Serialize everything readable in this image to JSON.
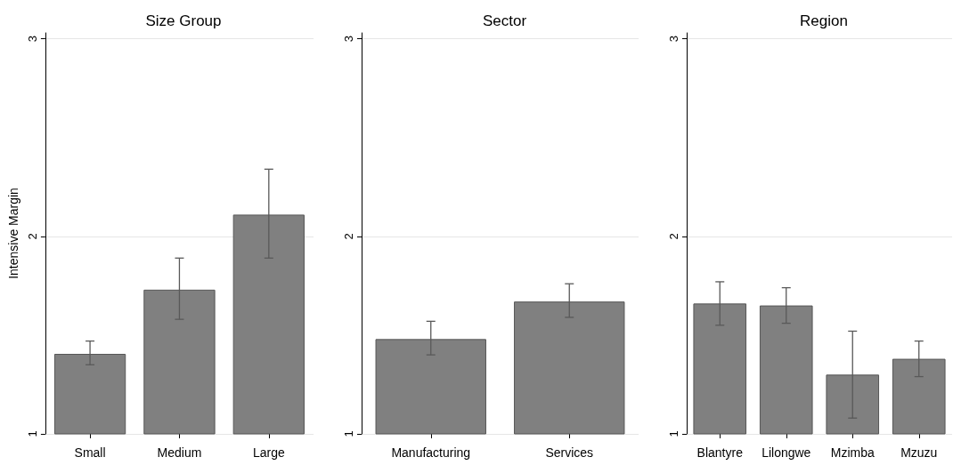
{
  "chart_data": [
    {
      "type": "bar",
      "title": "Size Group",
      "ylabel": "Intensive Margin",
      "categories": [
        "Small",
        "Medium",
        "Large"
      ],
      "values": [
        1.405,
        1.73,
        2.11
      ],
      "errors": [
        [
          1.35,
          1.47
        ],
        [
          1.58,
          1.89
        ],
        [
          1.89,
          2.34
        ]
      ],
      "color": "#808080",
      "ylim": [
        1,
        3.03
      ],
      "yticks": [
        1,
        2,
        3
      ],
      "grid": "y"
    },
    {
      "type": "bar",
      "title": "Sector",
      "categories": [
        "Manufacturing",
        "Services"
      ],
      "values": [
        1.48,
        1.67
      ],
      "errors": [
        [
          1.4,
          1.57
        ],
        [
          1.59,
          1.76
        ]
      ],
      "color": "#808080",
      "ylim": [
        1,
        3.03
      ],
      "yticks": [
        1,
        2,
        3
      ],
      "grid": "y"
    },
    {
      "type": "bar",
      "title": "Region",
      "categories": [
        "Blantyre",
        "Lilongwe",
        "Mzimba",
        "Mzuzu"
      ],
      "values": [
        1.66,
        1.65,
        1.3,
        1.38
      ],
      "errors": [
        [
          1.55,
          1.77
        ],
        [
          1.56,
          1.74
        ],
        [
          1.08,
          1.52
        ],
        [
          1.29,
          1.47
        ]
      ],
      "color": "#808080",
      "ylim": [
        1,
        3.03
      ],
      "yticks": [
        1,
        2,
        3
      ],
      "grid": "y"
    }
  ]
}
